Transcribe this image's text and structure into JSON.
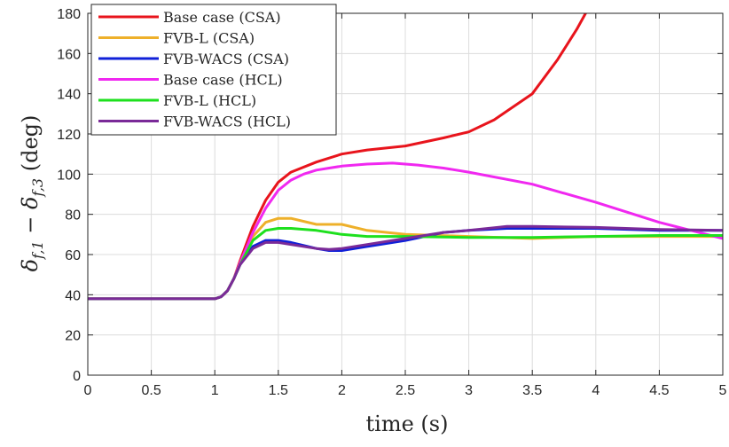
{
  "chart_data": {
    "type": "line",
    "xlabel": "time (s)",
    "ylabel": "δ_{f,1} − δ_{f,3} (deg)",
    "ylabel_parts": {
      "delta1": "δ",
      "sub1": "f,1",
      "minus": " − ",
      "delta2": "δ",
      "sub2": "f,3",
      "unit": " (deg)"
    },
    "xlim": [
      0,
      5
    ],
    "ylim": [
      0,
      180
    ],
    "xticks": [
      0,
      0.5,
      1,
      1.5,
      2,
      2.5,
      3,
      3.5,
      4,
      4.5,
      5
    ],
    "xtick_labels": [
      "0",
      "0.5",
      "1",
      "1.5",
      "2",
      "2.5",
      "3",
      "3.5",
      "4",
      "4.5",
      "5"
    ],
    "yticks": [
      0,
      20,
      40,
      60,
      80,
      100,
      120,
      140,
      160,
      180
    ],
    "ytick_labels": [
      "0",
      "20",
      "40",
      "60",
      "80",
      "100",
      "120",
      "140",
      "160",
      "180"
    ],
    "grid": true,
    "legend_position": "top-left",
    "series": [
      {
        "name": "Base case (CSA)",
        "color": "#e8141c",
        "x": [
          0,
          1.0,
          1.05,
          1.1,
          1.15,
          1.2,
          1.3,
          1.4,
          1.5,
          1.6,
          1.8,
          2.0,
          2.2,
          2.5,
          2.8,
          3.0,
          3.2,
          3.5,
          3.7,
          3.85,
          3.92
        ],
        "y": [
          38,
          38,
          39,
          42,
          48,
          57,
          74,
          87,
          96,
          101,
          106,
          110,
          112,
          114,
          118,
          121,
          127,
          140,
          157,
          172,
          180
        ]
      },
      {
        "name": "FVB-L (CSA)",
        "color": "#eeb02a",
        "x": [
          0,
          1.0,
          1.05,
          1.1,
          1.15,
          1.2,
          1.3,
          1.4,
          1.5,
          1.6,
          1.8,
          2.0,
          2.2,
          2.5,
          3.0,
          3.5,
          4.0,
          4.5,
          5.0
        ],
        "y": [
          38,
          38,
          39,
          42,
          48,
          56,
          69,
          76,
          78,
          78,
          75,
          75,
          72,
          70,
          69,
          68,
          69,
          69,
          69
        ]
      },
      {
        "name": "FVB-WACS (CSA)",
        "color": "#1020d8",
        "x": [
          0,
          1.0,
          1.05,
          1.1,
          1.15,
          1.2,
          1.3,
          1.4,
          1.5,
          1.6,
          1.8,
          1.9,
          2.0,
          2.2,
          2.5,
          2.8,
          3.0,
          3.3,
          3.5,
          4.0,
          4.5,
          5.0
        ],
        "y": [
          38,
          38,
          39,
          42,
          48,
          55,
          64,
          67,
          67,
          66,
          63,
          62,
          62,
          64,
          67,
          71,
          72,
          73,
          73,
          73,
          72,
          72
        ]
      },
      {
        "name": "Base case (HCL)",
        "color": "#f028f0",
        "x": [
          0,
          1.0,
          1.05,
          1.1,
          1.15,
          1.2,
          1.3,
          1.4,
          1.5,
          1.6,
          1.7,
          1.8,
          1.9,
          2.0,
          2.2,
          2.4,
          2.6,
          2.8,
          3.0,
          3.5,
          4.0,
          4.5,
          5.0
        ],
        "y": [
          38,
          38,
          39,
          42,
          48,
          56,
          71,
          83,
          92,
          97,
          100,
          102,
          103,
          104,
          105,
          105.5,
          104.5,
          103,
          101,
          95,
          86,
          76,
          68
        ]
      },
      {
        "name": "FVB-L (HCL)",
        "color": "#1ee01e",
        "x": [
          0,
          1.0,
          1.05,
          1.1,
          1.15,
          1.2,
          1.3,
          1.4,
          1.5,
          1.6,
          1.8,
          2.0,
          2.2,
          2.5,
          3.0,
          3.5,
          4.0,
          4.5,
          5.0
        ],
        "y": [
          38,
          38,
          39,
          42,
          48,
          55,
          67,
          72,
          73,
          73,
          72,
          70,
          69,
          69,
          68.5,
          68.5,
          69,
          69.5,
          69.5
        ]
      },
      {
        "name": "FVB-WACS (HCL)",
        "color": "#7a2a98",
        "x": [
          0,
          1.0,
          1.05,
          1.1,
          1.15,
          1.2,
          1.3,
          1.4,
          1.5,
          1.6,
          1.8,
          1.9,
          2.0,
          2.2,
          2.5,
          2.8,
          3.0,
          3.3,
          3.5,
          4.0,
          4.5,
          5.0
        ],
        "y": [
          38,
          38,
          39,
          42,
          48,
          55,
          63,
          66,
          66,
          65,
          63,
          62.5,
          63,
          65,
          68,
          71,
          72,
          74,
          74,
          73.5,
          72.5,
          72
        ]
      }
    ]
  }
}
